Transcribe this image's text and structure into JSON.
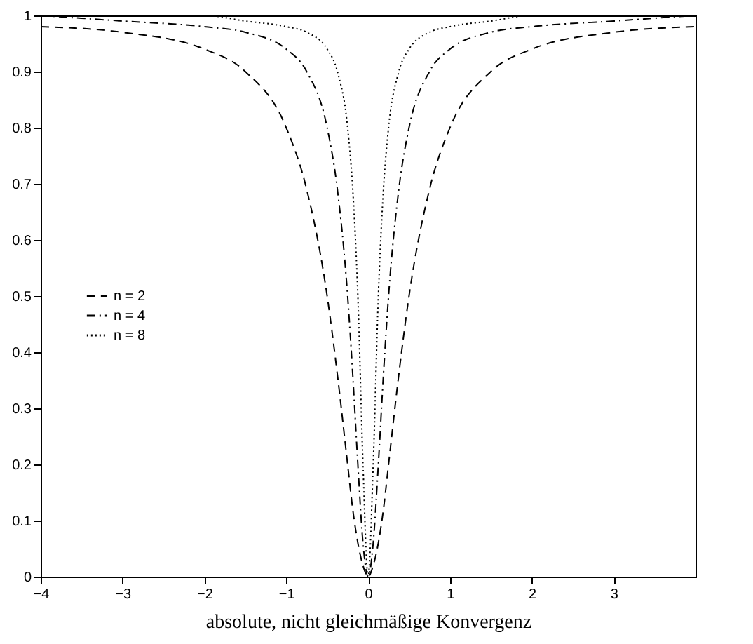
{
  "chart_data": {
    "type": "line",
    "xlabel": "absolute, nicht gleichmäßige Konvergenz",
    "x": [
      -4,
      -3,
      -2,
      -1.5,
      -1,
      -0.75,
      -0.5,
      -0.375,
      -0.25,
      -0.1875,
      -0.125,
      -0.0625,
      0,
      0.0625,
      0.125,
      0.1875,
      0.25,
      0.375,
      0.5,
      0.75,
      1,
      1.5,
      2,
      3,
      4
    ],
    "series": [
      {
        "name": "n = 2",
        "color": "#000000",
        "line_style": "dashed",
        "values": [
          0.98,
          0.97,
          0.94,
          0.9,
          0.8,
          0.69,
          0.5,
          0.36,
          0.2,
          0.12,
          0.06,
          0.02,
          0,
          0.02,
          0.06,
          0.12,
          0.2,
          0.36,
          0.5,
          0.69,
          0.8,
          0.9,
          0.94,
          0.97,
          0.98
        ]
      },
      {
        "name": "n = 4",
        "color": "#000000",
        "line_style": "dashdot",
        "values": [
          1.0,
          0.99,
          0.98,
          0.97,
          0.94,
          0.9,
          0.8,
          0.69,
          0.5,
          0.36,
          0.2,
          0.06,
          0,
          0.06,
          0.2,
          0.36,
          0.5,
          0.69,
          0.8,
          0.9,
          0.94,
          0.97,
          0.98,
          0.99,
          1.0
        ]
      },
      {
        "name": "n = 8",
        "color": "#000000",
        "line_style": "dotted",
        "values": [
          1.0,
          1.0,
          1.0,
          0.99,
          0.98,
          0.97,
          0.94,
          0.9,
          0.8,
          0.69,
          0.5,
          0.2,
          0,
          0.2,
          0.5,
          0.69,
          0.8,
          0.9,
          0.94,
          0.97,
          0.98,
          0.99,
          1.0,
          1.0,
          1.0
        ]
      }
    ],
    "xlim": [
      -4,
      4
    ],
    "xticks": [
      -4,
      -3,
      -2,
      -1,
      0,
      1,
      2,
      3
    ],
    "ylim": [
      0,
      1
    ],
    "yticks": [
      0,
      0.1,
      0.2,
      0.3,
      0.4,
      0.5,
      0.6,
      0.7,
      0.8,
      0.9,
      1
    ],
    "grid": false,
    "legend": "left",
    "marker": "none"
  }
}
